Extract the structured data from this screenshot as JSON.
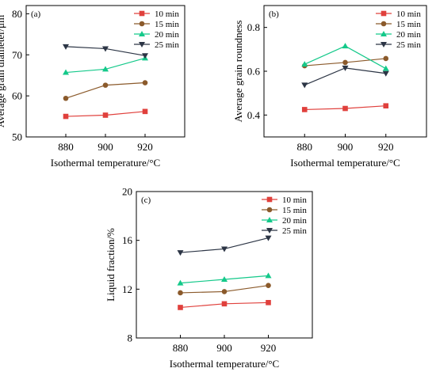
{
  "chart_data": [
    {
      "type": "line",
      "panel_label": "(a)",
      "x": [
        880,
        900,
        920
      ],
      "xticks": [
        "880",
        "900",
        "920"
      ],
      "xlim": [
        860,
        940
      ],
      "yticks": [
        "50",
        "60",
        "70",
        "80"
      ],
      "ylim": [
        50,
        82
      ],
      "xlabel": "Isothermal temperature/°C",
      "ylabel": "Average grain diameter/μm",
      "legend": "top-right",
      "series": [
        {
          "name": "10 min",
          "values": [
            55.0,
            55.3,
            56.2
          ],
          "color": "#e0403c",
          "marker": "square"
        },
        {
          "name": "15 min",
          "values": [
            59.4,
            62.6,
            63.2
          ],
          "color": "#8b5a2b",
          "marker": "circle"
        },
        {
          "name": "20 min",
          "values": [
            65.7,
            66.5,
            69.2
          ],
          "color": "#14c98a",
          "marker": "triangle-up"
        },
        {
          "name": "25 min",
          "values": [
            72.0,
            71.5,
            69.8
          ],
          "color": "#2c3545",
          "marker": "triangle-down"
        }
      ]
    },
    {
      "type": "line",
      "panel_label": "(b)",
      "x": [
        880,
        900,
        920
      ],
      "xticks": [
        "880",
        "900",
        "920"
      ],
      "xlim": [
        860,
        940
      ],
      "yticks": [
        "0.4",
        "0.6",
        "0.8"
      ],
      "ylim": [
        0.3,
        0.9
      ],
      "xlabel": "Isothermal temperature/°C",
      "ylabel": "Average grain roundness",
      "legend": "top-right",
      "series": [
        {
          "name": "10 min",
          "values": [
            0.425,
            0.43,
            0.442
          ],
          "color": "#e0403c",
          "marker": "square"
        },
        {
          "name": "15 min",
          "values": [
            0.625,
            0.64,
            0.658
          ],
          "color": "#8b5a2b",
          "marker": "circle"
        },
        {
          "name": "20 min",
          "values": [
            0.632,
            0.715,
            0.612
          ],
          "color": "#14c98a",
          "marker": "triangle-up"
        },
        {
          "name": "25 min",
          "values": [
            0.537,
            0.615,
            0.59
          ],
          "color": "#2c3545",
          "marker": "triangle-down"
        }
      ]
    },
    {
      "type": "line",
      "panel_label": "(c)",
      "x": [
        880,
        900,
        920
      ],
      "xticks": [
        "880",
        "900",
        "920"
      ],
      "xlim": [
        860,
        940
      ],
      "yticks": [
        "8",
        "12",
        "16",
        "20"
      ],
      "ylim": [
        8,
        20
      ],
      "xlabel": "Isothermal temperature/°C",
      "ylabel": "Liquid fraction/%",
      "legend": "top-right",
      "series": [
        {
          "name": "10 min",
          "values": [
            10.5,
            10.8,
            10.9
          ],
          "color": "#e0403c",
          "marker": "square"
        },
        {
          "name": "15 min",
          "values": [
            11.7,
            11.8,
            12.3
          ],
          "color": "#8b5a2b",
          "marker": "circle"
        },
        {
          "name": "20 min",
          "values": [
            12.5,
            12.8,
            13.1
          ],
          "color": "#14c98a",
          "marker": "triangle-up"
        },
        {
          "name": "25 min",
          "values": [
            15.0,
            15.3,
            16.2
          ],
          "color": "#2c3545",
          "marker": "triangle-down"
        }
      ]
    }
  ]
}
